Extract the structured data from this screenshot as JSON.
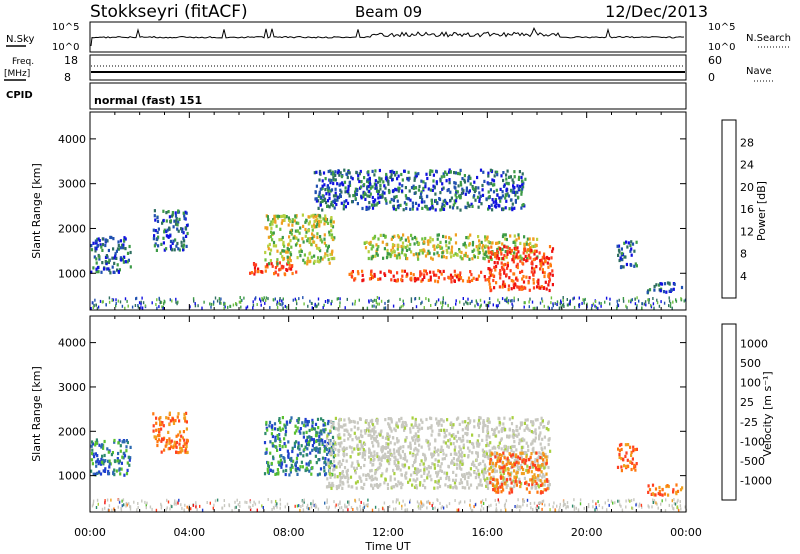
{
  "header": {
    "station": "Stokkseyri (fitACF)",
    "beam": "Beam 09",
    "date": "12/Dec/2013"
  },
  "top_panels": {
    "nsky_label": "N.Sky",
    "nsky_ticks": [
      "10^5",
      "10^0"
    ],
    "nsearch_label": "N.Search",
    "nsearch_ticks": [
      "10^5",
      "10^0"
    ],
    "freq_label_1": "Freq.",
    "freq_label_2": "[MHz]",
    "freq_ticks": [
      "18",
      "8"
    ],
    "nave_label": "Nave",
    "nave_ticks": [
      "60",
      "0"
    ],
    "cpid_label": "CPID",
    "cpid_text": "normal (fast) 151"
  },
  "chart_data": [
    {
      "type": "heatmap",
      "title": "",
      "xlabel": "Time UT",
      "ylabel": "Slant Range [km]",
      "xlim_hours": [
        0,
        24
      ],
      "ylim_km": [
        180,
        4600
      ],
      "x_ticks": [
        "00:00",
        "04:00",
        "08:00",
        "12:00",
        "16:00",
        "20:00",
        "00:00"
      ],
      "y_ticks": [
        "1000",
        "2000",
        "3000",
        "4000"
      ],
      "colorbar": {
        "label": "Power [dB]",
        "ticks": [
          "28",
          "24",
          "20",
          "16",
          "12",
          "8",
          "4"
        ],
        "colors": [
          "#1010e0",
          "#2050b0",
          "#2e6e60",
          "#3c9a46",
          "#70c040",
          "#b8d040",
          "#f0a020",
          "#ff7a10",
          "#ff4020",
          "#ee1010"
        ]
      },
      "blobs": [
        {
          "t0": 0.0,
          "t1": 1.6,
          "r0": 1000,
          "r1": 1800,
          "class": "low"
        },
        {
          "t0": 2.5,
          "t1": 3.9,
          "r0": 1500,
          "r1": 2400,
          "class": "low"
        },
        {
          "t0": 6.4,
          "t1": 8.3,
          "r0": 950,
          "r1": 1250,
          "class": "high"
        },
        {
          "t0": 7.0,
          "t1": 9.8,
          "r0": 1200,
          "r1": 2300,
          "class": "mid"
        },
        {
          "t0": 10.4,
          "t1": 16.0,
          "r0": 800,
          "r1": 1050,
          "class": "high"
        },
        {
          "t0": 11.0,
          "t1": 18.0,
          "r0": 1300,
          "r1": 1850,
          "class": "mid"
        },
        {
          "t0": 16.0,
          "t1": 18.6,
          "r0": 600,
          "r1": 1600,
          "class": "high"
        },
        {
          "t0": 9.0,
          "t1": 17.5,
          "r0": 2400,
          "r1": 3300,
          "class": "low"
        },
        {
          "t0": 21.2,
          "t1": 22.0,
          "r0": 1100,
          "r1": 1700,
          "class": "low"
        },
        {
          "t0": 22.4,
          "t1": 23.8,
          "r0": 550,
          "r1": 800,
          "class": "low"
        }
      ]
    },
    {
      "type": "heatmap",
      "title": "",
      "xlabel": "Time UT",
      "ylabel": "Slant Range [km]",
      "xlim_hours": [
        0,
        24
      ],
      "ylim_km": [
        180,
        4600
      ],
      "x_ticks": [
        "00:00",
        "04:00",
        "08:00",
        "12:00",
        "16:00",
        "20:00",
        "00:00"
      ],
      "y_ticks": [
        "1000",
        "2000",
        "3000",
        "4000"
      ],
      "colorbar": {
        "label": "Velocity [m s⁻¹]",
        "ticks": [
          "1000",
          "500",
          "100",
          "25",
          "-25",
          "-100",
          "-500",
          "-1000"
        ],
        "colors": [
          "#1f3fcf",
          "#2c6ab0",
          "#2e8a6a",
          "#58c030",
          "#a8d040",
          "#c8c8c0",
          "#f0a020",
          "#ff7810",
          "#ff4020",
          "#ee1010"
        ]
      },
      "blobs": [
        {
          "t0": 0.0,
          "t1": 1.6,
          "r0": 1000,
          "r1": 1800,
          "class": "pos"
        },
        {
          "t0": 2.5,
          "t1": 3.9,
          "r0": 1500,
          "r1": 2400,
          "class": "neg"
        },
        {
          "t0": 7.0,
          "t1": 9.8,
          "r0": 1000,
          "r1": 2300,
          "class": "pos"
        },
        {
          "t0": 9.5,
          "t1": 18.5,
          "r0": 700,
          "r1": 2300,
          "class": "zero"
        },
        {
          "t0": 16.0,
          "t1": 18.4,
          "r0": 600,
          "r1": 1500,
          "class": "neg"
        },
        {
          "t0": 21.2,
          "t1": 22.0,
          "r0": 1100,
          "r1": 1700,
          "class": "neg"
        },
        {
          "t0": 22.4,
          "t1": 23.8,
          "r0": 550,
          "r1": 800,
          "class": "neg"
        }
      ]
    }
  ]
}
